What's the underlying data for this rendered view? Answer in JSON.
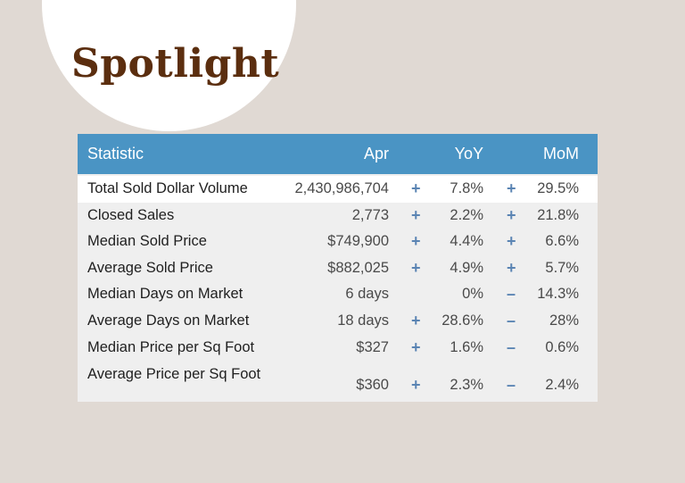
{
  "title": "Spotlight",
  "table": {
    "headers": {
      "statistic": "Statistic",
      "apr": "Apr",
      "yoy": "YoY",
      "mom": "MoM"
    },
    "rows": [
      {
        "label": "Total Sold Dollar Volume",
        "apr": "2,430,986,704",
        "yoy_sign": "+",
        "yoy": "7.8%",
        "mom_sign": "+",
        "mom": "29.5%"
      },
      {
        "label": "Closed Sales",
        "apr": "2,773",
        "yoy_sign": "+",
        "yoy": "2.2%",
        "mom_sign": "+",
        "mom": "21.8%"
      },
      {
        "label": "Median Sold Price",
        "apr": "$749,900",
        "yoy_sign": "+",
        "yoy": "4.4%",
        "mom_sign": "+",
        "mom": "6.6%"
      },
      {
        "label": "Average Sold Price",
        "apr": "$882,025",
        "yoy_sign": "+",
        "yoy": "4.9%",
        "mom_sign": "+",
        "mom": "5.7%"
      },
      {
        "label": "Median Days on Market",
        "apr": "6 days",
        "yoy_sign": "",
        "yoy": "0%",
        "mom_sign": "–",
        "mom": "14.3%"
      },
      {
        "label": "Average Days on Market",
        "apr": "18 days",
        "yoy_sign": "+",
        "yoy": "28.6%",
        "mom_sign": "–",
        "mom": "28%"
      },
      {
        "label": "Median Price per Sq Foot",
        "apr": "$327",
        "yoy_sign": "+",
        "yoy": "1.6%",
        "mom_sign": "–",
        "mom": "0.6%"
      },
      {
        "label": "Average Price per Sq Foot",
        "apr": "$360",
        "yoy_sign": "+",
        "yoy": "2.3%",
        "mom_sign": "–",
        "mom": "2.4%"
      }
    ]
  }
}
